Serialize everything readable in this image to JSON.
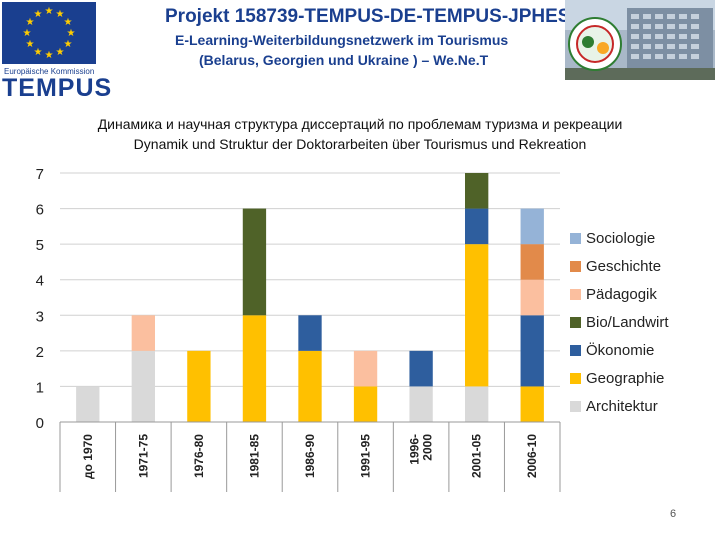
{
  "header": {
    "eu_label": "Europäische Kommission",
    "tempus_label": "TEMPUS",
    "project_line1": "Projekt 158739-TEMPUS-DE-TEMPUS-JPHES",
    "project_line2": "E-Learning-Weiterbildungsnetzwerk im Tourismus",
    "project_line3": "(Belarus, Georgien und Ukraine ) – We.Ne.T"
  },
  "colors": {
    "brand_blue": "#1a3f8f",
    "eu_star": "#ffcc00"
  },
  "chart_data": {
    "type": "bar",
    "stacked": true,
    "title": "Динамика и научная структура диссертаций по проблемам туризма и рекреации",
    "subtitle": "Dynamik und Struktur der Doktorarbeiten über Tourismus und Rekreation",
    "categories": [
      "до 1970",
      "1971-75",
      "1976-80",
      "1981-85",
      "1986-90",
      "1991-95",
      "1996-2000",
      "2001-05",
      "2006-10"
    ],
    "category_labels": [
      [
        "до 1970"
      ],
      [
        "1971-75"
      ],
      [
        "1976-80"
      ],
      [
        "1981-85"
      ],
      [
        "1986-90"
      ],
      [
        "1991-95"
      ],
      [
        "1996-",
        "2000"
      ],
      [
        "2001-05"
      ],
      [
        "2006-10"
      ]
    ],
    "yticks": [
      0,
      1,
      2,
      3,
      4,
      5,
      6,
      7
    ],
    "ylim": [
      0,
      7
    ],
    "grid": true,
    "legend_position": "right",
    "series": [
      {
        "name": "Architektur",
        "color": "#d9d9d9",
        "values": [
          1,
          2,
          0,
          0,
          0,
          0,
          1,
          1,
          0
        ]
      },
      {
        "name": "Geographie",
        "color": "#ffc000",
        "values": [
          0,
          0,
          2,
          3,
          2,
          1,
          0,
          4,
          1
        ]
      },
      {
        "name": "Ökonomie",
        "color": "#2e5e9e",
        "values": [
          0,
          0,
          0,
          0,
          1,
          0,
          1,
          1,
          2
        ]
      },
      {
        "name": "Bio/Landwirt",
        "color": "#4f6228",
        "values": [
          0,
          0,
          0,
          3,
          0,
          0,
          0,
          1,
          0
        ]
      },
      {
        "name": "Pädagogik",
        "color": "#fbbf9f",
        "values": [
          0,
          1,
          0,
          0,
          0,
          1,
          0,
          0,
          1
        ]
      },
      {
        "name": "Geschichte",
        "color": "#e28a4a",
        "values": [
          0,
          0,
          0,
          0,
          0,
          0,
          0,
          0,
          1
        ]
      },
      {
        "name": "Sociologie",
        "color": "#95b3d7",
        "values": [
          0,
          0,
          0,
          0,
          0,
          0,
          0,
          0,
          1
        ]
      }
    ]
  },
  "page_number": "6"
}
